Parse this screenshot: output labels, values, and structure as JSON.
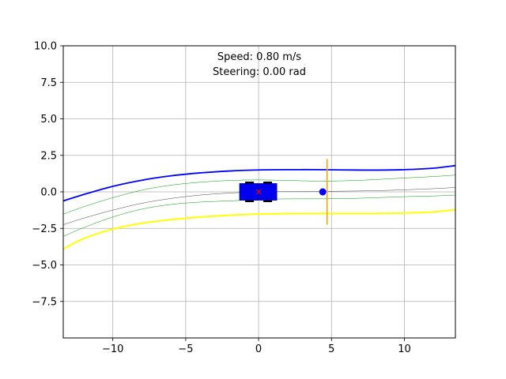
{
  "chart_data": {
    "type": "line",
    "title": "",
    "xlabel": "",
    "ylabel": "",
    "xlim": [
      -13.4,
      13.5
    ],
    "ylim": [
      -10.0,
      10.0
    ],
    "grid": true,
    "x_ticks": [
      -10,
      -5,
      0,
      5,
      10
    ],
    "x_tick_labels": [
      "−10",
      "−5",
      "0",
      "5",
      "10"
    ],
    "y_ticks": [
      10.0,
      7.5,
      5.0,
      2.5,
      0.0,
      -2.5,
      -5.0,
      -7.5
    ],
    "y_tick_labels": [
      "10.0",
      "7.5",
      "5.0",
      "2.5",
      "0.0",
      "−2.5",
      "−5.0",
      "−7.5"
    ],
    "annotations": [
      "Speed: 0.80 m/s",
      "Steering: 0.00 rad"
    ],
    "series": [
      {
        "color": "#0000ff",
        "x": [
          -13.4,
          -12,
          -10,
          -8,
          -6,
          -4,
          -2,
          0,
          2,
          4,
          6,
          8,
          10,
          12,
          13.5
        ],
        "y": [
          -0.62,
          -0.18,
          0.38,
          0.8,
          1.1,
          1.3,
          1.43,
          1.5,
          1.52,
          1.52,
          1.5,
          1.49,
          1.52,
          1.62,
          1.8
        ]
      },
      {
        "color": "#ffff00",
        "x": [
          -13.4,
          -12,
          -10,
          -8,
          -6,
          -4,
          -2,
          0,
          2,
          4,
          6,
          8,
          10,
          12,
          13.5
        ],
        "y": [
          -3.92,
          -3.2,
          -2.55,
          -2.15,
          -1.9,
          -1.72,
          -1.6,
          -1.52,
          -1.49,
          -1.48,
          -1.48,
          -1.48,
          -1.45,
          -1.37,
          -1.22
        ]
      },
      {
        "color": "#009900",
        "x": [
          -13.4,
          -12,
          -10,
          -8,
          -6,
          -4,
          -2,
          0,
          2,
          4,
          6,
          8,
          10,
          12,
          13.5
        ],
        "y": [
          -1.52,
          -1.02,
          -0.4,
          0.12,
          0.46,
          0.66,
          0.78,
          0.82,
          0.78,
          0.74,
          0.76,
          0.84,
          0.95,
          1.05,
          1.15
        ]
      },
      {
        "color": "#444444",
        "x": [
          -13.4,
          -12,
          -10,
          -8,
          -6,
          -4,
          -2,
          0,
          2,
          4,
          6,
          8,
          10,
          12,
          13.5
        ],
        "y": [
          -2.25,
          -1.8,
          -1.25,
          -0.78,
          -0.45,
          -0.22,
          -0.08,
          0.0,
          0.02,
          0.03,
          0.05,
          0.08,
          0.14,
          0.22,
          0.3
        ]
      },
      {
        "color": "#009900",
        "x": [
          -13.4,
          -12,
          -10,
          -8,
          -6,
          -4,
          -2,
          0,
          2,
          4,
          6,
          8,
          10,
          12,
          13.5
        ],
        "y": [
          -3.05,
          -2.45,
          -1.72,
          -1.18,
          -0.86,
          -0.7,
          -0.62,
          -0.52,
          -0.48,
          -0.48,
          -0.46,
          -0.4,
          -0.33,
          -0.28,
          -0.22
        ]
      }
    ],
    "vehicle": {
      "x": 0.0,
      "y": 0.0,
      "body_color": "#0000ee",
      "marker_color": "#ff0000"
    },
    "target_point": {
      "x": 4.4,
      "y": 0.0,
      "color": "#0000ff"
    },
    "target_bar": {
      "x": 4.7,
      "y_min": -2.25,
      "y_max": 2.25,
      "color": "#ffa500"
    }
  }
}
